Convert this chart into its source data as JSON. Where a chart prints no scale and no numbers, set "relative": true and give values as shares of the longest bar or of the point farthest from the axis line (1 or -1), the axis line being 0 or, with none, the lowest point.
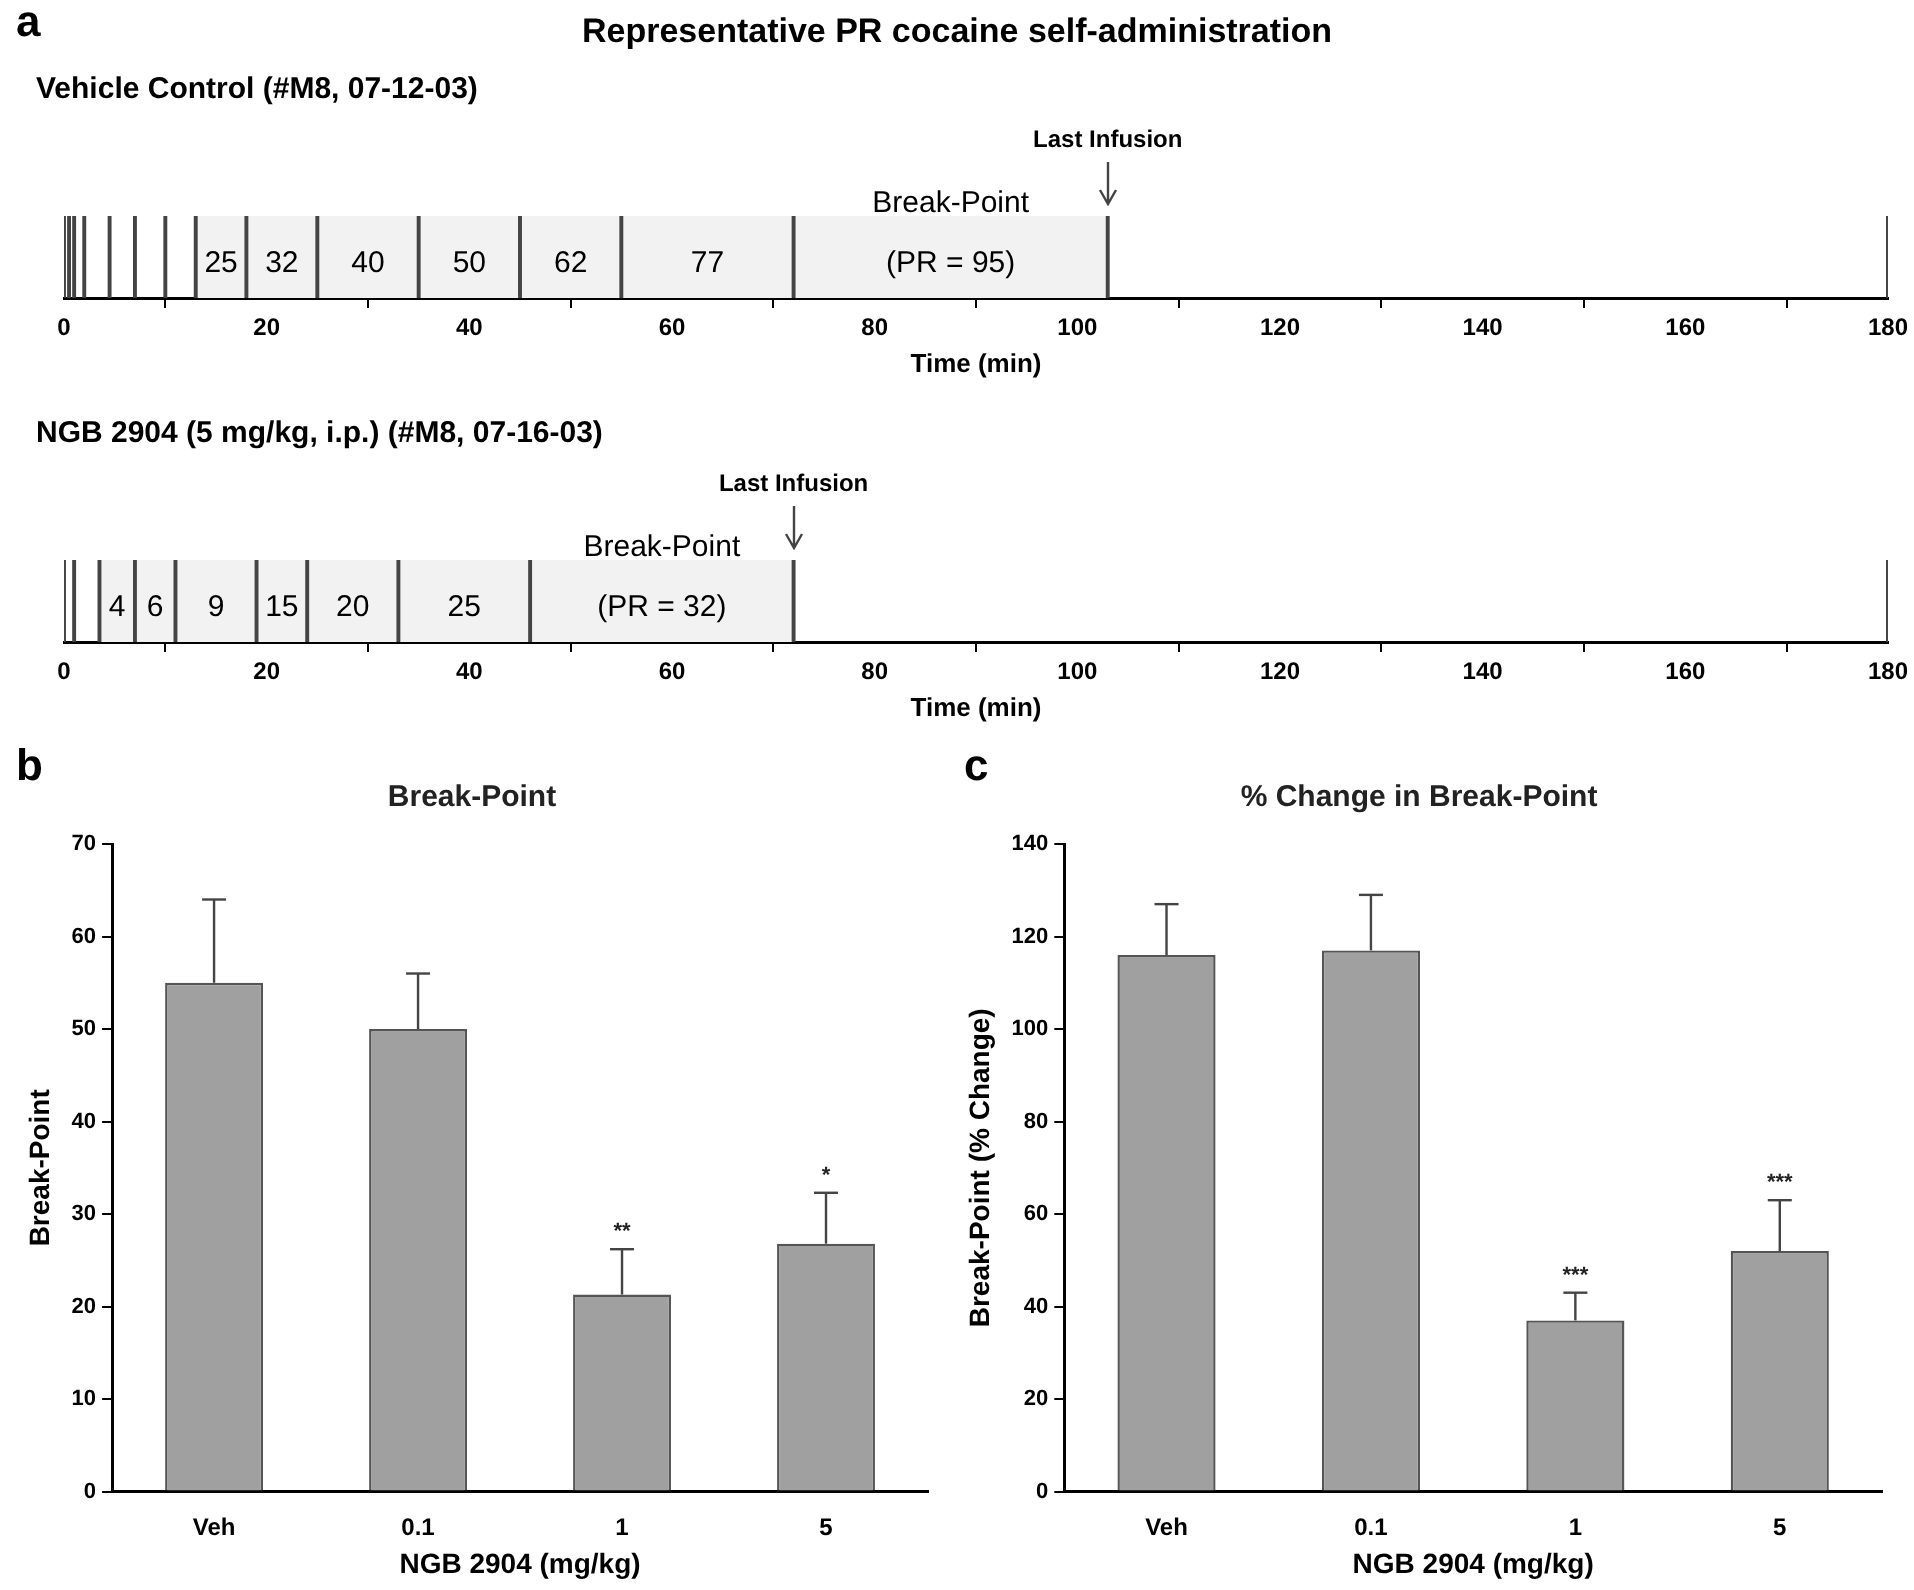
{
  "chart_data": [
    {
      "type": "bar",
      "relative": true,
      "title": "Representative PR cocaine self-administration",
      "subtitle": "Vehicle Control (#M8, 07-12-03)",
      "xlabel": "Time (min)",
      "xlim": [
        0,
        180
      ],
      "xticks": [
        0,
        20,
        40,
        60,
        80,
        100,
        120,
        140,
        160,
        180
      ],
      "color": "#444444",
      "x": [
        0,
        0.5,
        1,
        2,
        4.5,
        7,
        10,
        13,
        18,
        25,
        35,
        45,
        55,
        72,
        103,
        180
      ],
      "values": [
        1,
        1,
        1,
        1,
        1,
        1,
        1,
        1,
        1,
        1,
        1,
        1,
        1,
        1,
        1,
        1
      ],
      "bands": [
        {
          "axis": "x",
          "from": 13,
          "to": 18,
          "label": "25",
          "color": "#f2f2f2"
        },
        {
          "axis": "x",
          "from": 18,
          "to": 25,
          "label": "32",
          "color": "#f2f2f2"
        },
        {
          "axis": "x",
          "from": 25,
          "to": 35,
          "label": "40",
          "color": "#f2f2f2"
        },
        {
          "axis": "x",
          "from": 35,
          "to": 45,
          "label": "50",
          "color": "#f2f2f2"
        },
        {
          "axis": "x",
          "from": 45,
          "to": 55,
          "label": "62",
          "color": "#f2f2f2"
        },
        {
          "axis": "x",
          "from": 55,
          "to": 72,
          "label": "77",
          "color": "#f2f2f2"
        },
        {
          "axis": "x",
          "from": 72,
          "to": 103,
          "label": "Break-Point\n(PR = 95)",
          "color": "#f2f2f2"
        }
      ],
      "annotations": [
        "a",
        {
          "text": "Last Infusion",
          "x": 103,
          "y": 1
        }
      ]
    },
    {
      "type": "bar",
      "relative": true,
      "title": "NGB 2904 (5 mg/kg, i.p.) (#M8, 07-16-03)",
      "xlabel": "Time (min)",
      "xlim": [
        0,
        180
      ],
      "xticks": [
        0,
        20,
        40,
        60,
        80,
        100,
        120,
        140,
        160,
        180
      ],
      "color": "#444444",
      "x": [
        0,
        1,
        3.5,
        7,
        11,
        19,
        24,
        33,
        46,
        72,
        180
      ],
      "values": [
        1,
        1,
        1,
        1,
        1,
        1,
        1,
        1,
        1,
        1,
        1
      ],
      "bands": [
        {
          "axis": "x",
          "from": 3.5,
          "to": 7,
          "label": "4",
          "color": "#f2f2f2"
        },
        {
          "axis": "x",
          "from": 7,
          "to": 11,
          "label": "6",
          "color": "#f2f2f2"
        },
        {
          "axis": "x",
          "from": 11,
          "to": 19,
          "label": "9",
          "color": "#f2f2f2"
        },
        {
          "axis": "x",
          "from": 19,
          "to": 24,
          "label": "15",
          "color": "#f2f2f2"
        },
        {
          "axis": "x",
          "from": 24,
          "to": 33,
          "label": "20",
          "color": "#f2f2f2"
        },
        {
          "axis": "x",
          "from": 33,
          "to": 46,
          "label": "25",
          "color": "#f2f2f2"
        },
        {
          "axis": "x",
          "from": 46,
          "to": 72,
          "label": "Break-Point\n(PR = 32)",
          "color": "#f2f2f2"
        }
      ],
      "annotations": [
        {
          "text": "Last Infusion",
          "x": 72,
          "y": 1
        }
      ]
    },
    {
      "type": "bar",
      "title": "Break-Point",
      "xlabel": "NGB 2904 (mg/kg)",
      "ylabel": "Break-Point",
      "categories": [
        "Veh",
        "0.1",
        "1",
        "5"
      ],
      "values": [
        55,
        50,
        21.3,
        26.8
      ],
      "color": "#a0a0a0",
      "errors": [
        [
          55,
          64
        ],
        [
          50,
          56
        ],
        [
          21.3,
          26.2
        ],
        [
          26.8,
          32.3
        ]
      ],
      "value_labels": [
        null,
        null,
        "**",
        "*"
      ],
      "ylim": [
        0,
        70
      ],
      "yticks": [
        0,
        10,
        20,
        30,
        40,
        50,
        60,
        70
      ],
      "grid": false,
      "annotations": [
        "b"
      ]
    },
    {
      "type": "bar",
      "title": "% Change in Break-Point",
      "xlabel": "NGB 2904 (mg/kg)",
      "ylabel": "Break-Point (% Change)",
      "categories": [
        "Veh",
        "0.1",
        "1",
        "5"
      ],
      "values": [
        116,
        117,
        37,
        52
      ],
      "color": "#a0a0a0",
      "errors": [
        [
          116,
          127
        ],
        [
          117,
          129
        ],
        [
          37,
          43
        ],
        [
          52,
          63
        ]
      ],
      "value_labels": [
        null,
        null,
        "***",
        "***"
      ],
      "ylim": [
        0,
        140
      ],
      "yticks": [
        0,
        20,
        40,
        60,
        80,
        100,
        120,
        140
      ],
      "grid": false,
      "annotations": [
        "c"
      ]
    }
  ]
}
